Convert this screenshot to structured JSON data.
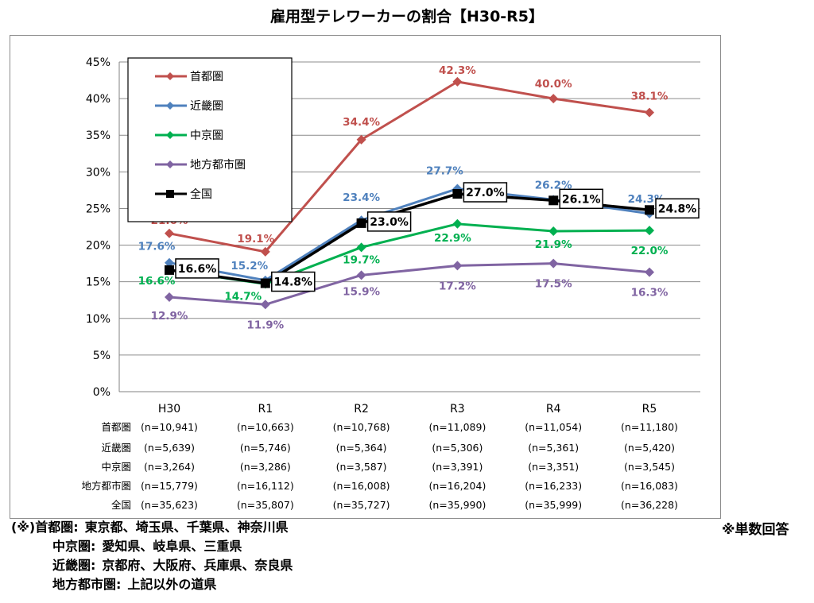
{
  "title": "雇用型テレワーカーの割合【H30-R5】",
  "chart_data": {
    "type": "line",
    "title": "雇用型テレワーカーの割合【H30-R5】",
    "categories": [
      "H30",
      "R1",
      "R2",
      "R3",
      "R4",
      "R5"
    ],
    "ylim": [
      0,
      45
    ],
    "yticks": [
      0,
      5,
      10,
      15,
      20,
      25,
      30,
      35,
      40,
      45
    ],
    "ytick_labels": [
      "0%",
      "5%",
      "10%",
      "15%",
      "20%",
      "25%",
      "30%",
      "35%",
      "40%",
      "45%"
    ],
    "grid": true,
    "legend_position": "top-left",
    "series": [
      {
        "name": "首都圏",
        "color": "#c0504d",
        "marker": "diamond",
        "values": [
          21.6,
          19.1,
          34.4,
          42.3,
          40.0,
          38.1
        ],
        "labels": [
          "21.6%",
          "19.1%",
          "34.4%",
          "42.3%",
          "40.0%",
          "38.1%"
        ]
      },
      {
        "name": "近畿圏",
        "color": "#4f81bd",
        "marker": "diamond",
        "values": [
          17.6,
          15.2,
          23.4,
          27.7,
          26.2,
          24.3
        ],
        "labels": [
          "17.6%",
          "15.2%",
          "23.4%",
          "27.7%",
          "26.2%",
          "24.3%"
        ]
      },
      {
        "name": "中京圏",
        "color": "#00b050",
        "marker": "diamond",
        "values": [
          16.6,
          14.7,
          19.7,
          22.9,
          21.9,
          22.0
        ],
        "labels": [
          "16.6%",
          "14.7%",
          "19.7%",
          "22.9%",
          "21.9%",
          "22.0%"
        ]
      },
      {
        "name": "地方都市圏",
        "color": "#8064a2",
        "marker": "diamond",
        "values": [
          12.9,
          11.9,
          15.9,
          17.2,
          17.5,
          16.3
        ],
        "labels": [
          "12.9%",
          "11.9%",
          "15.9%",
          "17.2%",
          "17.5%",
          "16.3%"
        ]
      },
      {
        "name": "全国",
        "color": "#000000",
        "marker": "square",
        "values": [
          16.6,
          14.8,
          23.0,
          27.0,
          26.1,
          24.8
        ],
        "labels": [
          "16.6%",
          "14.8%",
          "23.0%",
          "27.0%",
          "26.1%",
          "24.8%"
        ]
      }
    ],
    "sample_table": {
      "rows": [
        {
          "name": "首都圏",
          "values": [
            "(n=10,941)",
            "(n=10,663)",
            "(n=10,768)",
            "(n=11,089)",
            "(n=11,054)",
            "(n=11,180)"
          ]
        },
        {
          "name": "近畿圏",
          "values": [
            "(n=5,639)",
            "(n=5,746)",
            "(n=5,364)",
            "(n=5,306)",
            "(n=5,361)",
            "(n=5,420)"
          ]
        },
        {
          "name": "中京圏",
          "values": [
            "(n=3,264)",
            "(n=3,286)",
            "(n=3,587)",
            "(n=3,391)",
            "(n=3,351)",
            "(n=3,545)"
          ]
        },
        {
          "name": "地方都市圏",
          "values": [
            "(n=15,779)",
            "(n=16,112)",
            "(n=16,008)",
            "(n=16,204)",
            "(n=16,233)",
            "(n=16,083)"
          ]
        },
        {
          "name": "全国",
          "values": [
            "(n=35,623)",
            "(n=35,807)",
            "(n=35,727)",
            "(n=35,990)",
            "(n=35,999)",
            "(n=36,228)"
          ]
        }
      ]
    }
  },
  "footnotes": {
    "prefix": "(※)",
    "lines": [
      {
        "label": "首都圏:",
        "text": "東京都、埼玉県、千葉県、神奈川県"
      },
      {
        "label": "中京圏:",
        "text": "愛知県、岐阜県、三重県"
      },
      {
        "label": "近畿圏:",
        "text": "京都府、大阪府、兵庫県、奈良県"
      },
      {
        "label": "地方都市圏:",
        "text": "上記以外の道県"
      }
    ],
    "note_right": "※単数回答"
  }
}
